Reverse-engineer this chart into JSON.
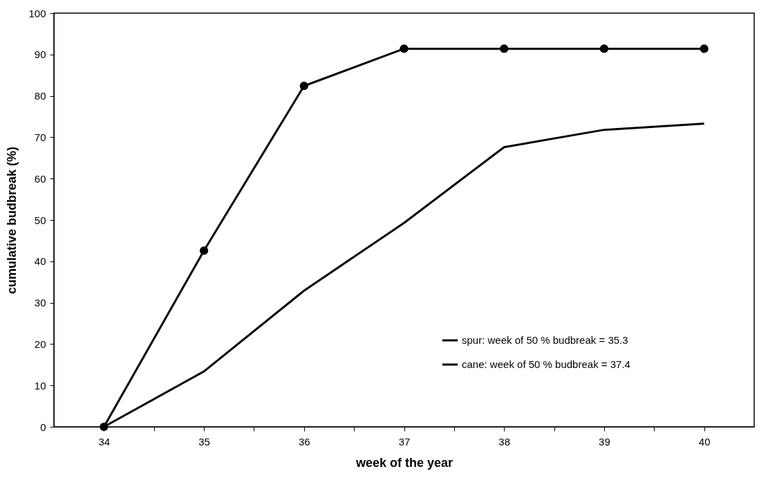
{
  "chart_data": {
    "type": "line",
    "xlabel": "week of the year",
    "ylabel": "cumulative budbreak (%)",
    "x": [
      34,
      35,
      36,
      37,
      38,
      39,
      40
    ],
    "xlim": [
      33.5,
      40.5
    ],
    "xticks": [
      34,
      {
        "value": 34.5,
        "label": null
      },
      35,
      {
        "value": 35.5,
        "label": null
      },
      36,
      {
        "value": 36.5,
        "label": null
      },
      37,
      {
        "value": 37.5,
        "label": null
      },
      38,
      {
        "value": 38.5,
        "label": null
      },
      39,
      {
        "value": 39.5,
        "label": null
      },
      40
    ],
    "ylim": [
      0,
      100
    ],
    "yticks": [
      0,
      10,
      20,
      30,
      40,
      50,
      60,
      70,
      80,
      90,
      100
    ],
    "grid": false,
    "legend": "bottom right",
    "series": [
      {
        "name": "spur: week of 50 % budbreak = 35.3",
        "color": "#000000",
        "marker": "circle",
        "values": [
          0,
          42.6,
          82.4,
          91.4,
          91.4,
          91.4,
          91.4
        ]
      },
      {
        "name": "cane: week of 50 % budbreak = 37.4",
        "color": "#000000",
        "marker": "none",
        "values": [
          0,
          13.4,
          32.9,
          49.3,
          67.6,
          71.8,
          73.3
        ]
      }
    ]
  }
}
